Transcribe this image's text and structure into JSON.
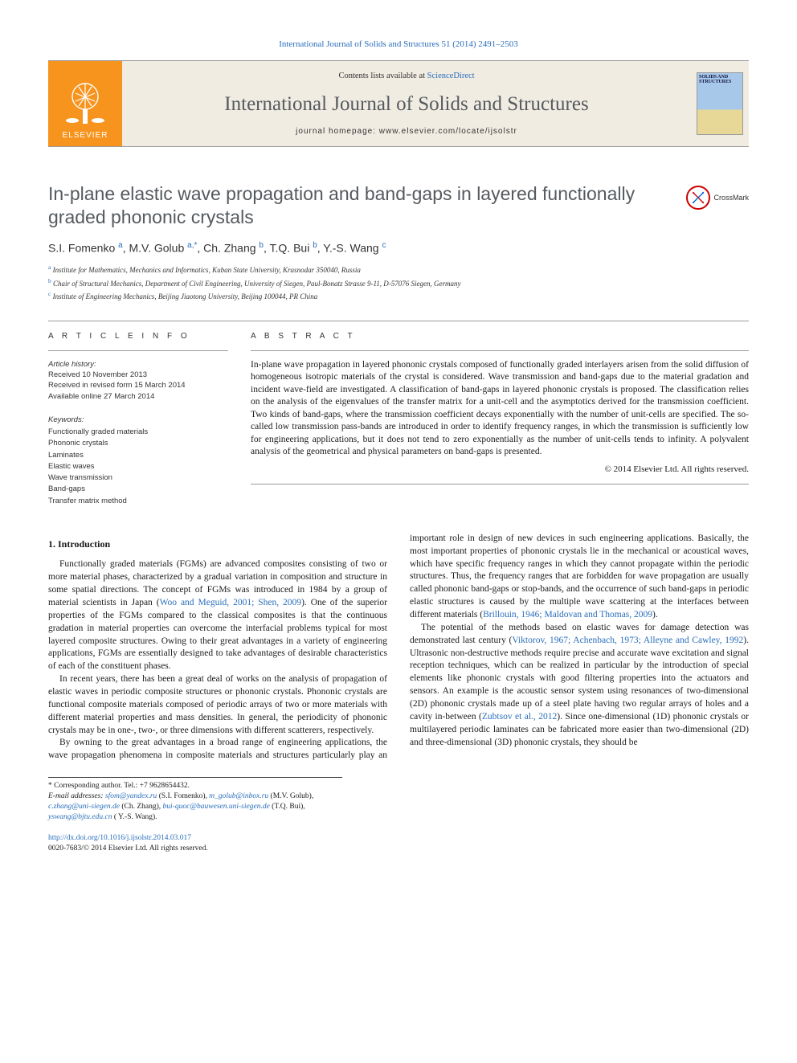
{
  "topref": {
    "text": "International Journal of Solids and Structures 51 (2014) 2491–2503"
  },
  "header": {
    "contents_prefix": "Contents lists available at ",
    "contents_link": "ScienceDirect",
    "journal_title": "International Journal of Solids and Structures",
    "homepage_label": "journal homepage: www.elsevier.com/locate/ijsolstr",
    "elsevier_label": "ELSEVIER",
    "cover_title": "SOLIDS AND STRUCTURES"
  },
  "crossmark": {
    "label": "CrossMark"
  },
  "article": {
    "title": "In-plane elastic wave propagation and band-gaps in layered functionally graded phononic crystals",
    "authors_html": "S.I. Fomenko <sup>a</sup>, M.V. Golub <sup>a,*</sup>, Ch. Zhang <sup>b</sup>, T.Q. Bui <sup>b</sup>, Y.-S. Wang <sup>c</sup>",
    "affiliations": [
      {
        "sup": "a",
        "text": "Institute for Mathematics, Mechanics and Informatics, Kuban State University, Krasnodar 350040, Russia"
      },
      {
        "sup": "b",
        "text": "Chair of Structural Mechanics, Department of Civil Engineering, University of Siegen, Paul-Bonatz Strasse 9-11, D-57076 Siegen, Germany"
      },
      {
        "sup": "c",
        "text": "Institute of Engineering Mechanics, Beijing Jiaotong University, Beijing 100044, PR China"
      }
    ]
  },
  "info": {
    "head": "A R T I C L E   I N F O",
    "history_label": "Article history:",
    "history": [
      "Received 10 November 2013",
      "Received in revised form 15 March 2014",
      "Available online 27 March 2014"
    ],
    "keywords_label": "Keywords:",
    "keywords": [
      "Functionally graded materials",
      "Phononic crystals",
      "Laminates",
      "Elastic waves",
      "Wave transmission",
      "Band-gaps",
      "Transfer matrix method"
    ]
  },
  "abstract": {
    "head": "A B S T R A C T",
    "text": "In-plane wave propagation in layered phononic crystals composed of functionally graded interlayers arisen from the solid diffusion of homogeneous isotropic materials of the crystal is considered. Wave transmission and band-gaps due to the material gradation and incident wave-field are investigated. A classification of band-gaps in layered phononic crystals is proposed. The classification relies on the analysis of the eigenvalues of the transfer matrix for a unit-cell and the asymptotics derived for the transmission coefficient. Two kinds of band-gaps, where the transmission coefficient decays exponentially with the number of unit-cells are specified. The so-called low transmission pass-bands are introduced in order to identify frequency ranges, in which the transmission is sufficiently low for engineering applications, but it does not tend to zero exponentially as the number of unit-cells tends to infinity. A polyvalent analysis of the geometrical and physical parameters on band-gaps is presented.",
    "copyright": "© 2014 Elsevier Ltd. All rights reserved."
  },
  "body": {
    "h_intro": "1. Introduction",
    "p1": "Functionally graded materials (FGMs) are advanced composites consisting of two or more material phases, characterized by a gradual variation in composition and structure in some spatial directions. The concept of FGMs was introduced in 1984 by a group of material scientists in Japan (",
    "p1_link": "Woo and Meguid, 2001; Shen, 2009",
    "p1b": "). One of the superior properties of the FGMs compared to the classical composites is that the continuous gradation in material properties can overcome the interfacial problems typical for most layered composite structures. Owing to their great advantages in a variety of engineering applications, FGMs are essentially designed to take advantages of desirable characteristics of each of the constituent phases.",
    "p2": "In recent years, there has been a great deal of works on the analysis of propagation of elastic waves in periodic composite structures or phononic crystals. Phononic crystals are functional composite materials composed of periodic arrays of two or more materials with different material properties and mass densities. In general, the periodicity of phononic crystals may be in one-, two-, or three dimensions with different scatterers, respectively.",
    "p3": "By owning to the great advantages in a broad range of engineering applications, the wave propagation phenomena in composite materials and structures particularly play an important role in design of new devices in such engineering applications. Basically, the most important properties of phononic crystals lie in the mechanical or acoustical waves, which have specific frequency ranges in which they cannot propagate within the periodic structures. Thus, the frequency ranges that are forbidden for wave propagation are usually called phononic band-gaps or stop-bands, and the occurrence of such band-gaps in periodic elastic structures is caused by the multiple wave scattering at the interfaces between different materials (",
    "p3_link": "Brillouin, 1946; Maldovan and Thomas, 2009",
    "p3b": ").",
    "p4": "The potential of the methods based on elastic waves for damage detection was demonstrated last century (",
    "p4_link": "Viktorov, 1967; Achenbach, 1973; Alleyne and Cawley, 1992",
    "p4b": "). Ultrasonic non-destructive methods require precise and accurate wave excitation and signal reception techniques, which can be realized in particular by the introduction of special elements like phononic crystals with good filtering properties into the actuators and sensors. An example is the acoustic sensor system using resonances of two-dimensional (2D) phononic crystals made up of a steel plate having two regular arrays of holes and a cavity in-between (",
    "p4_link2": "Zubtsov et al., 2012",
    "p4c": "). Since one-dimensional (1D) phononic crystals or multilayered periodic laminates can be fabricated more easier than two-dimensional (2D) and three-dimensional (3D) phononic crystals, they should be"
  },
  "footnote": {
    "corr": "* Corresponding author. Tel.: +7 9628654432.",
    "email_label": "E-mail addresses:",
    "emails": [
      {
        "addr": "sfom@yandex.ru",
        "who": "(S.I. Fomenko)"
      },
      {
        "addr": "m_golub@inbox.ru",
        "who": "(M.V. Golub)"
      },
      {
        "addr": "c.zhang@uni-siegen.de",
        "who": "(Ch. Zhang)"
      },
      {
        "addr": "bui-quoc@bauwesen.uni-siegen.de",
        "who": "(T.Q. Bui)"
      },
      {
        "addr": "yswang@bjtu.edu.cn",
        "who": "( Y.-S. Wang)."
      }
    ]
  },
  "bottom": {
    "doi": "http://dx.doi.org/10.1016/j.ijsolstr.2014.03.017",
    "issn_line": "0020-7683/© 2014 Elsevier Ltd. All rights reserved."
  },
  "colors": {
    "link": "#2a6ebb",
    "gray_title": "#555a5f",
    "orange": "#f7941e"
  }
}
